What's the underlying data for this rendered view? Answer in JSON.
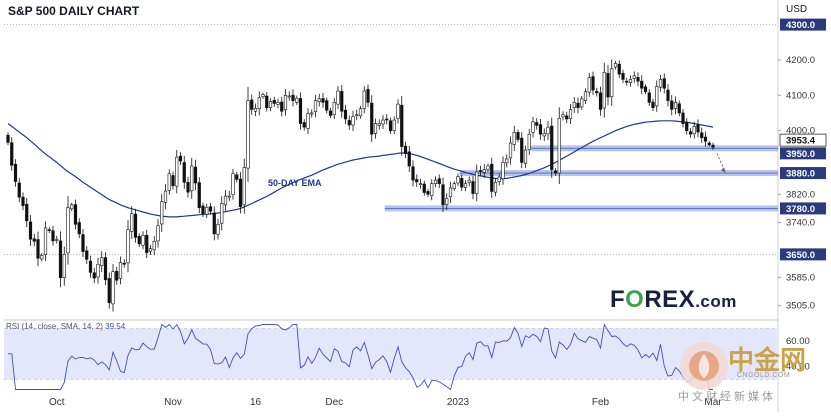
{
  "chart_data": {
    "type": "candlestick",
    "title": "S&P 500 DAILY CHART",
    "currency": "USD",
    "price_axis": {
      "min": 3470,
      "max": 4330,
      "ticks": [
        4200.0,
        4100.0,
        4000.0,
        3820.0,
        3740.0,
        3585.0,
        3505.0
      ],
      "tick_labels": [
        "4200.0",
        "4100.0",
        "4000.0",
        "3820.0",
        "3740.0",
        "3585.0",
        "3505.0"
      ]
    },
    "x_labels": [
      {
        "label": "Oct",
        "index": 13
      },
      {
        "label": "Nov",
        "index": 44
      },
      {
        "label": "16",
        "index": 66
      },
      {
        "label": "Dec",
        "index": 87
      },
      {
        "label": "2023",
        "index": 120
      },
      {
        "label": "Feb",
        "index": 158
      },
      {
        "label": "Mar",
        "index": 188
      }
    ],
    "closes": [
      3967,
      3902,
      3856,
      3812,
      3788,
      3745,
      3693,
      3687,
      3639,
      3647,
      3725,
      3718,
      3688,
      3692,
      3584,
      3650,
      3782,
      3790,
      3735,
      3708,
      3658,
      3636,
      3599,
      3583,
      3622,
      3641,
      3578,
      3513,
      3601,
      3577,
      3627,
      3624,
      3720,
      3765,
      3698,
      3680,
      3704,
      3655,
      3666,
      3687,
      3731,
      3799,
      3829,
      3878,
      3844,
      3925,
      3914,
      3854,
      3826,
      3900,
      3852,
      3782,
      3765,
      3783,
      3772,
      3708,
      3735,
      3794,
      3815,
      3815,
      3878,
      3862,
      3785,
      3896,
      4085,
      4060,
      4063,
      4093,
      4102,
      4065,
      4082,
      4077,
      4080,
      4055,
      4100,
      4098,
      4085,
      4092,
      4020,
      4010,
      4048,
      4050,
      4085,
      4090,
      4080,
      4058,
      4043,
      4080,
      4112,
      4055,
      4033,
      4016,
      4040,
      4045,
      4062,
      4112,
      4080,
      3990,
      4020,
      4020,
      4030,
      4032,
      4000,
      4030,
      4075,
      3955,
      3935,
      3900,
      3860,
      3855,
      3850,
      3825,
      3820,
      3850,
      3860,
      3850,
      3790,
      3808,
      3838,
      3850,
      3870,
      3840,
      3850,
      3860,
      3822,
      3883,
      3885,
      3890,
      3900,
      3828,
      3854,
      3869,
      3910,
      3920,
      3965,
      3995,
      3975,
      3910,
      3945,
      3990,
      4025,
      4015,
      3990,
      3992,
      4010,
      3890,
      3880,
      4035,
      4045,
      4033,
      4060,
      4080,
      4065,
      4090,
      4110,
      4150,
      4115,
      4107,
      4060,
      4165,
      4095,
      4175,
      4190,
      4160,
      4145,
      4137,
      4145,
      4155,
      4140,
      4120,
      4110,
      4080,
      4065,
      4125,
      4145,
      4120,
      4085,
      4060,
      4080,
      4050,
      4020,
      4000,
      3990,
      4012,
      3996,
      3980,
      3970,
      3960,
      3953
    ],
    "ema50": [
      4020,
      4012,
      4004,
      3996,
      3988,
      3980,
      3971,
      3962,
      3952,
      3943,
      3934,
      3926,
      3918,
      3910,
      3901,
      3892,
      3884,
      3877,
      3870,
      3862,
      3854,
      3847,
      3840,
      3833,
      3826,
      3819,
      3812,
      3805,
      3800,
      3795,
      3790,
      3786,
      3782,
      3779,
      3776,
      3773,
      3770,
      3767,
      3764,
      3762,
      3760,
      3758,
      3757,
      3756,
      3756,
      3756,
      3757,
      3758,
      3759,
      3760,
      3761,
      3762,
      3763,
      3764,
      3765,
      3766,
      3767,
      3769,
      3771,
      3773,
      3775,
      3777,
      3780,
      3784,
      3789,
      3794,
      3799,
      3804,
      3809,
      3814,
      3820,
      3826,
      3832,
      3838,
      3843,
      3848,
      3853,
      3858,
      3862,
      3866,
      3870,
      3874,
      3879,
      3884,
      3889,
      3893,
      3897,
      3901,
      3905,
      3908,
      3911,
      3914,
      3917,
      3919,
      3921,
      3923,
      3925,
      3926,
      3927,
      3928,
      3930,
      3931,
      3933,
      3934,
      3936,
      3937,
      3936,
      3935,
      3933,
      3930,
      3927,
      3923,
      3919,
      3915,
      3911,
      3907,
      3903,
      3899,
      3895,
      3891,
      3888,
      3885,
      3882,
      3879,
      3876,
      3874,
      3872,
      3870,
      3868,
      3866,
      3865,
      3864,
      3864,
      3865,
      3867,
      3869,
      3871,
      3873,
      3876,
      3879,
      3883,
      3887,
      3891,
      3895,
      3900,
      3905,
      3910,
      3916,
      3922,
      3928,
      3934,
      3940,
      3946,
      3952,
      3958,
      3964,
      3970,
      3975,
      3980,
      3985,
      3990,
      3995,
      4000,
      4004,
      4008,
      4012,
      4015,
      4018,
      4020,
      4022,
      4024,
      4025,
      4026,
      4027,
      4028,
      4028,
      4028,
      4028,
      4027,
      4026,
      4025,
      4024,
      4022,
      4020,
      4018,
      4016,
      4014,
      4012,
      4010
    ],
    "ema_label": "50-DAY EMA",
    "support_levels": [
      {
        "value": 3953.4,
        "label": "3953.4",
        "start_index": 140,
        "highlight": "current-price"
      },
      {
        "value": 3950.0,
        "label": "3950.0",
        "start_index": 140
      },
      {
        "value": 3880.0,
        "label": "3880.0",
        "start_index": 121
      },
      {
        "value": 3780.0,
        "label": "3780.0",
        "start_index": 101
      }
    ],
    "reference_levels": [
      {
        "value": 4300.0,
        "label": "4300.0"
      },
      {
        "value": 3650.0,
        "label": "3650.0"
      }
    ],
    "projection_arrow": {
      "from_value": 3935,
      "to_value": 3885,
      "style": "dotted"
    },
    "rsi": {
      "label": "RSI (14, close, SMA, 14, 2)",
      "value_label": "39.54",
      "min": 20,
      "max": 75,
      "tick_labels": [
        "60.00",
        "40.00"
      ],
      "ticks": [
        60,
        40
      ]
    },
    "colors": {
      "up_candle": "#ffffff",
      "down_candle": "#111111",
      "ema_line": "#1e3a8a",
      "level_band": "#9fb0e3",
      "level_label_bg": "#2a3a7c",
      "rsi_fill": "#e4e7fb",
      "rsi_line": "#3f51b5",
      "logo_accent": "#3fa34d"
    }
  },
  "watermark": {
    "cn_name": "中金网",
    "url": "CNGOLD.COM",
    "slogan": "中文财经新媒体"
  }
}
